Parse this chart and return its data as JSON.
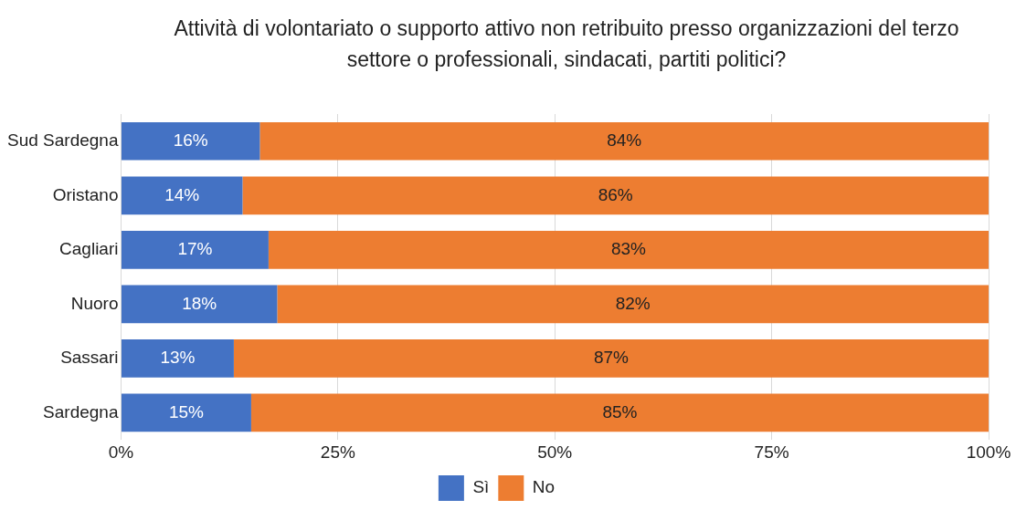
{
  "chart_data": {
    "type": "bar",
    "orientation": "horizontal",
    "stacked": true,
    "title": "Attività di volontariato o supporto attivo non retribuito presso organizzazioni del terzo settore o professionali, sindacati, partiti politici?",
    "categories": [
      "Sud Sardegna",
      "Oristano",
      "Cagliari",
      "Nuoro",
      "Sassari",
      "Sardegna"
    ],
    "series": [
      {
        "name": "Sì",
        "color": "#4472c4",
        "values": [
          16,
          14,
          17,
          18,
          13,
          15
        ],
        "value_labels": [
          "16%",
          "14%",
          "17%",
          "18%",
          "13%",
          "15%"
        ]
      },
      {
        "name": "No",
        "color": "#ed7d31",
        "values": [
          84,
          86,
          83,
          82,
          87,
          85
        ],
        "value_labels": [
          "84%",
          "86%",
          "83%",
          "82%",
          "87%",
          "85%"
        ]
      }
    ],
    "xlim": [
      0,
      100
    ],
    "xticks": [
      {
        "value": 0,
        "label": "0%"
      },
      {
        "value": 25,
        "label": "25%"
      },
      {
        "value": 50,
        "label": "50%"
      },
      {
        "value": 75,
        "label": "75%"
      },
      {
        "value": 100,
        "label": "100%"
      }
    ],
    "grid": "x",
    "legend": "bottom"
  }
}
